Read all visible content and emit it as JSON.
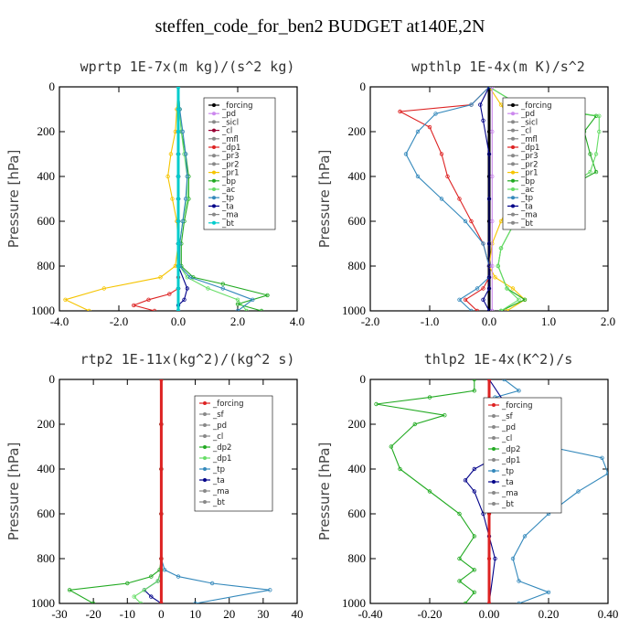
{
  "figure_title": "steffen_code_for_ben2  BUDGET at140E,2N",
  "chart_data": [
    {
      "type": "line",
      "title": "wprtp  1E-7x(m kg)/(s^2 kg)",
      "ylabel": "Pressure [hPa]",
      "xlim": [
        -4,
        4
      ],
      "ylim": [
        1000,
        0
      ],
      "xticks": [
        "-4.0",
        "-2.0",
        "0.0",
        "2.0",
        "4.0"
      ],
      "yticks": [
        "0",
        "200",
        "400",
        "600",
        "800",
        "1000"
      ],
      "legend": [
        "_forcing",
        "_pd",
        "_sicl",
        "_cl",
        "_mfl",
        "_dp1",
        "_pr3",
        "_pr2",
        "_pr1",
        "_bp",
        "_ac",
        "_tp",
        "_ta",
        "_ma",
        "_bt"
      ],
      "series": [
        {
          "name": "_forcing",
          "color": "#000000",
          "x": [
            0,
            0,
            0,
            0,
            0,
            0,
            0,
            0,
            0,
            0,
            0
          ],
          "y": [
            0,
            100,
            200,
            300,
            400,
            500,
            600,
            700,
            800,
            900,
            1000
          ]
        },
        {
          "name": "_pd",
          "color": "#cc88ee",
          "x": [
            0,
            0,
            0,
            0,
            0,
            0,
            0,
            0,
            0,
            0,
            0
          ],
          "y": [
            0,
            100,
            200,
            300,
            400,
            500,
            600,
            700,
            800,
            900,
            1000
          ]
        },
        {
          "name": "_cl",
          "color": "#990033",
          "x": [
            0,
            0,
            0,
            0,
            0,
            0,
            0,
            0,
            0,
            0,
            0
          ],
          "y": [
            0,
            100,
            200,
            300,
            400,
            500,
            600,
            700,
            800,
            900,
            1000
          ]
        },
        {
          "name": "_pr1",
          "color": "#f5c400",
          "x": [
            0,
            -0.05,
            -0.1,
            -0.25,
            -0.35,
            -0.2,
            -0.05,
            0,
            -0.1,
            -0.6,
            -2.5,
            -3.8,
            -3.0
          ],
          "y": [
            0,
            100,
            200,
            300,
            400,
            500,
            600,
            700,
            800,
            850,
            900,
            950,
            1000
          ]
        },
        {
          "name": "_dp1",
          "color": "#dd2222",
          "x": [
            0,
            0,
            0,
            0,
            0,
            0,
            0,
            -0.3,
            -1.0,
            -1.5,
            -0.8
          ],
          "y": [
            0,
            200,
            400,
            600,
            800,
            850,
            900,
            925,
            950,
            975,
            1000
          ]
        },
        {
          "name": "_bp",
          "color": "#22aa22",
          "x": [
            0,
            0.05,
            0.1,
            0.25,
            0.35,
            0.35,
            0.2,
            0.1,
            0.1,
            0.5,
            1.5,
            3.0,
            2.0,
            2.8
          ],
          "y": [
            0,
            100,
            200,
            300,
            400,
            500,
            600,
            700,
            800,
            850,
            880,
            930,
            970,
            1000
          ]
        },
        {
          "name": "_ac",
          "color": "#66dd66",
          "x": [
            0,
            0.05,
            0.1,
            0.2,
            0.3,
            0.3,
            0.15,
            0.05,
            0.05,
            0.3,
            1.0,
            2.0,
            2.3
          ],
          "y": [
            0,
            100,
            200,
            300,
            400,
            500,
            600,
            700,
            800,
            850,
            900,
            950,
            1000
          ]
        },
        {
          "name": "_tp",
          "color": "#3388bb",
          "x": [
            0,
            0.05,
            0.15,
            0.25,
            0.3,
            0.25,
            0.15,
            0.05,
            0.05,
            0.4,
            1.5,
            2.5,
            2.0
          ],
          "y": [
            0,
            100,
            200,
            300,
            400,
            500,
            600,
            700,
            800,
            850,
            900,
            950,
            1000
          ]
        },
        {
          "name": "_ta",
          "color": "#000088",
          "x": [
            0,
            0,
            0,
            0,
            0,
            0,
            0,
            0,
            0,
            0.3,
            0.2,
            0,
            0
          ],
          "y": [
            0,
            100,
            200,
            300,
            400,
            500,
            600,
            700,
            800,
            900,
            950,
            975,
            1000
          ]
        },
        {
          "name": "_bt",
          "color": "#00cccc",
          "x": [
            0,
            0,
            0,
            0,
            0,
            0,
            0,
            0,
            0,
            0,
            0
          ],
          "y": [
            0,
            100,
            200,
            300,
            400,
            500,
            600,
            700,
            800,
            900,
            1000
          ]
        }
      ]
    },
    {
      "type": "line",
      "title": "wpthlp  1E-4x(m K)/s^2",
      "ylabel": "Pressure [hPa]",
      "xlim": [
        -2,
        2
      ],
      "ylim": [
        1000,
        0
      ],
      "xticks": [
        "-2.0",
        "-1.0",
        "0.0",
        "1.0",
        "2.0"
      ],
      "yticks": [
        "0",
        "200",
        "400",
        "600",
        "800",
        "1000"
      ],
      "legend": [
        "_forcing",
        "_pd",
        "_sicl",
        "_cl",
        "_mfl",
        "_dp1",
        "_pr3",
        "_pr2",
        "_pr1",
        "_bp",
        "_ac",
        "_tp",
        "_ta",
        "_ma",
        "_bt"
      ],
      "series": [
        {
          "name": "_forcing",
          "color": "#000000",
          "x": [
            0,
            0,
            0,
            0,
            0,
            0
          ],
          "y": [
            0,
            200,
            400,
            600,
            800,
            1000
          ]
        },
        {
          "name": "_dp1",
          "color": "#dd2222",
          "x": [
            0,
            -0.3,
            -1.5,
            -1.0,
            -0.8,
            -0.7,
            -0.5,
            -0.3,
            -0.1,
            0,
            0,
            -0.1,
            -0.4,
            -0.2
          ],
          "y": [
            0,
            80,
            110,
            180,
            300,
            400,
            500,
            600,
            700,
            800,
            850,
            900,
            950,
            1000
          ]
        },
        {
          "name": "_tp",
          "color": "#3388bb",
          "x": [
            0,
            -0.3,
            -0.9,
            -1.2,
            -1.4,
            -1.2,
            -0.8,
            -0.4,
            -0.1,
            0,
            0,
            -0.2,
            -0.5,
            -0.3
          ],
          "y": [
            0,
            80,
            120,
            200,
            300,
            400,
            500,
            600,
            700,
            800,
            850,
            900,
            950,
            1000
          ]
        },
        {
          "name": "_pr1",
          "color": "#f5c400",
          "x": [
            0,
            0.2,
            0.3,
            0.4,
            0.5,
            0.6,
            0.4,
            0.2,
            0.05,
            0,
            0.1,
            0.4,
            0.6,
            0.3
          ],
          "y": [
            0,
            80,
            120,
            200,
            300,
            400,
            500,
            600,
            700,
            800,
            850,
            900,
            950,
            1000
          ]
        },
        {
          "name": "_bp",
          "color": "#22aa22",
          "x": [
            0,
            0.5,
            1.8,
            1.6,
            1.7,
            1.8,
            1.3,
            0.8,
            0.4,
            0.2,
            0.15,
            0.3,
            0.6,
            0.2
          ],
          "y": [
            0,
            80,
            130,
            200,
            300,
            380,
            450,
            530,
            620,
            720,
            800,
            900,
            950,
            1000
          ]
        },
        {
          "name": "_ac",
          "color": "#66dd66",
          "x": [
            0,
            0.5,
            1.85,
            1.85,
            1.8,
            1.7,
            1.3,
            0.8,
            0.4,
            0.2,
            0.15,
            0.3,
            0.5,
            0.2
          ],
          "y": [
            0,
            80,
            130,
            200,
            300,
            380,
            450,
            530,
            620,
            720,
            800,
            900,
            950,
            1000
          ]
        },
        {
          "name": "_ta",
          "color": "#000088",
          "x": [
            0,
            -0.15,
            -0.1,
            0,
            0,
            0,
            0,
            0,
            0,
            -0.1,
            0
          ],
          "y": [
            0,
            80,
            150,
            300,
            500,
            700,
            800,
            850,
            900,
            950,
            1000
          ]
        },
        {
          "name": "_pd",
          "color": "#cc88ee",
          "x": [
            0.05,
            0.05,
            0.05,
            0.05,
            0.05,
            0.05
          ],
          "y": [
            0,
            200,
            400,
            600,
            800,
            1000
          ]
        }
      ]
    },
    {
      "type": "line",
      "title": "rtp2  1E-11x(kg^2)/(kg^2 s)",
      "ylabel": "Pressure [hPa]",
      "xlim": [
        -30,
        40
      ],
      "ylim": [
        1000,
        0
      ],
      "xticks": [
        "-30",
        "-20",
        "-10",
        "0",
        "10",
        "20",
        "30",
        "40"
      ],
      "yticks": [
        "0",
        "200",
        "400",
        "600",
        "800",
        "1000"
      ],
      "legend": [
        "_forcing",
        "_sf",
        "_pd",
        "_cl",
        "_dp2",
        "_dp1",
        "_tp",
        "_ta",
        "_ma",
        "_bt"
      ],
      "series": [
        {
          "name": "_dp2",
          "color": "#22aa22",
          "x": [
            0,
            0,
            0,
            0,
            0,
            -0.5,
            -3,
            -10,
            -27,
            -20
          ],
          "y": [
            0,
            200,
            400,
            600,
            800,
            850,
            880,
            910,
            940,
            1000
          ]
        },
        {
          "name": "_tp",
          "color": "#3388bb",
          "x": [
            0,
            0,
            0,
            0,
            0,
            1,
            5,
            15,
            32,
            10
          ],
          "y": [
            0,
            200,
            400,
            600,
            800,
            850,
            880,
            910,
            940,
            1000
          ]
        },
        {
          "name": "_ta",
          "color": "#000088",
          "x": [
            0,
            0,
            0,
            0,
            0,
            0,
            -1,
            -5,
            -3,
            0
          ],
          "y": [
            0,
            200,
            400,
            600,
            800,
            850,
            900,
            940,
            970,
            1000
          ]
        },
        {
          "name": "_dp1",
          "color": "#66dd66",
          "x": [
            0,
            0,
            0,
            0,
            0,
            0,
            -1,
            -5,
            -8,
            -6
          ],
          "y": [
            0,
            200,
            400,
            600,
            800,
            850,
            900,
            940,
            970,
            1000
          ]
        },
        {
          "name": "_forcing",
          "color": "#dd2222",
          "x": [
            0,
            0,
            0,
            0,
            0,
            0
          ],
          "y": [
            0,
            200,
            400,
            600,
            800,
            1000
          ]
        }
      ]
    },
    {
      "type": "line",
      "title": "thlp2  1E-4x(K^2)/s",
      "ylabel": "Pressure [hPa]",
      "xlim": [
        -0.4,
        0.4
      ],
      "ylim": [
        1000,
        0
      ],
      "xticks": [
        "-0.40",
        "-0.20",
        "0.00",
        "0.20",
        "0.40"
      ],
      "yticks": [
        "0",
        "200",
        "400",
        "600",
        "800",
        "1000"
      ],
      "legend": [
        "_forcing",
        "_sf",
        "_pd",
        "_cl",
        "_dp2",
        "_dp1",
        "_tp",
        "_ta",
        "_ma",
        "_bt"
      ],
      "series": [
        {
          "name": "_dp2",
          "color": "#22aa22",
          "x": [
            -0.05,
            -0.05,
            -0.2,
            -0.38,
            -0.15,
            -0.25,
            -0.33,
            -0.3,
            -0.2,
            -0.1,
            -0.05,
            -0.1,
            -0.05,
            -0.1,
            -0.05,
            -0.08
          ],
          "y": [
            0,
            50,
            80,
            110,
            160,
            200,
            300,
            400,
            500,
            600,
            700,
            800,
            850,
            900,
            950,
            1000
          ]
        },
        {
          "name": "_tp",
          "color": "#3388bb",
          "x": [
            0.05,
            0.1,
            0.02,
            0.12,
            0.05,
            0.1,
            0.2,
            0.38,
            0.4,
            0.3,
            0.2,
            0.12,
            0.08,
            0.1,
            0.2,
            0.1
          ],
          "y": [
            0,
            50,
            80,
            110,
            160,
            200,
            300,
            350,
            420,
            500,
            600,
            700,
            800,
            900,
            950,
            1000
          ]
        },
        {
          "name": "_ta",
          "color": "#000088",
          "x": [
            0,
            0.05,
            0.03,
            0.05,
            0.02,
            -0.05,
            -0.08,
            -0.05,
            -0.02,
            0,
            0.02,
            0
          ],
          "y": [
            0,
            100,
            200,
            300,
            350,
            400,
            450,
            500,
            600,
            700,
            800,
            1000
          ]
        },
        {
          "name": "_forcing",
          "color": "#dd2222",
          "x": [
            0,
            0,
            0,
            0,
            0,
            0
          ],
          "y": [
            0,
            200,
            400,
            600,
            800,
            1000
          ]
        }
      ]
    }
  ]
}
